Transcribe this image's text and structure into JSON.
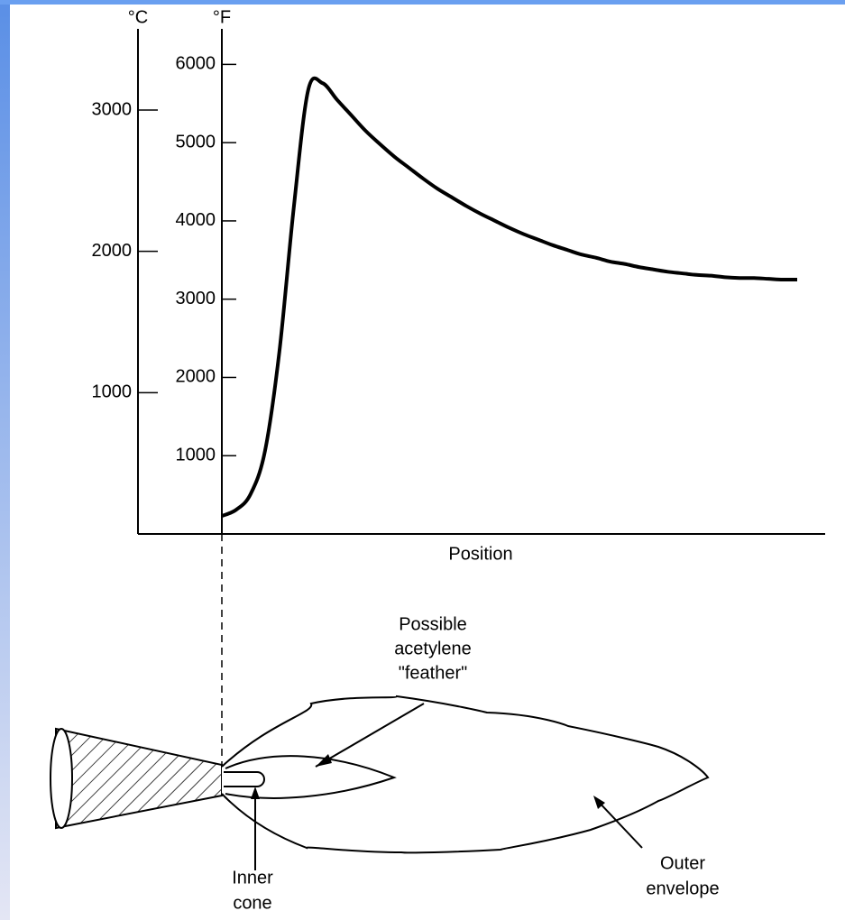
{
  "chart_data": {
    "type": "line",
    "y_label": "°F",
    "y2_label": "°C",
    "x_label": "Position",
    "categories": [
      null,
      null,
      null,
      null,
      null,
      null,
      null,
      null,
      null,
      null,
      null,
      null,
      null,
      null,
      null,
      null,
      null,
      null,
      null,
      null,
      null,
      null,
      null,
      null,
      null,
      null,
      null,
      null,
      null,
      null,
      null,
      null,
      null,
      null,
      null,
      null,
      null,
      null,
      null,
      null,
      null
    ],
    "series": [
      {
        "color": "#000000",
        "values": [
          230,
          310,
          510,
          1060,
          2330,
          4170,
          5670,
          5760,
          5550,
          5350,
          5150,
          4980,
          4820,
          4680,
          4540,
          4410,
          4300,
          4190,
          4090,
          4000,
          3910,
          3830,
          3760,
          3690,
          3630,
          3570,
          3530,
          3480,
          3450,
          3410,
          3380,
          3350,
          3330,
          3310,
          3300,
          3280,
          3270,
          3270,
          3260,
          3250,
          3250
        ]
      }
    ],
    "ylim": [
      0,
      6500
    ],
    "yticks": [
      1000,
      2000,
      3000,
      4000,
      5000,
      6000
    ],
    "y2lim": [
      0,
      3600
    ],
    "y2ticks": [
      1000,
      2000,
      3000
    ]
  },
  "diagram": {
    "feather_label": [
      "Possible",
      "acetylene",
      "\"feather\""
    ],
    "inner_cone_label": [
      "Inner",
      "cone"
    ],
    "outer_envelope_label": [
      "Outer",
      "envelope"
    ]
  }
}
